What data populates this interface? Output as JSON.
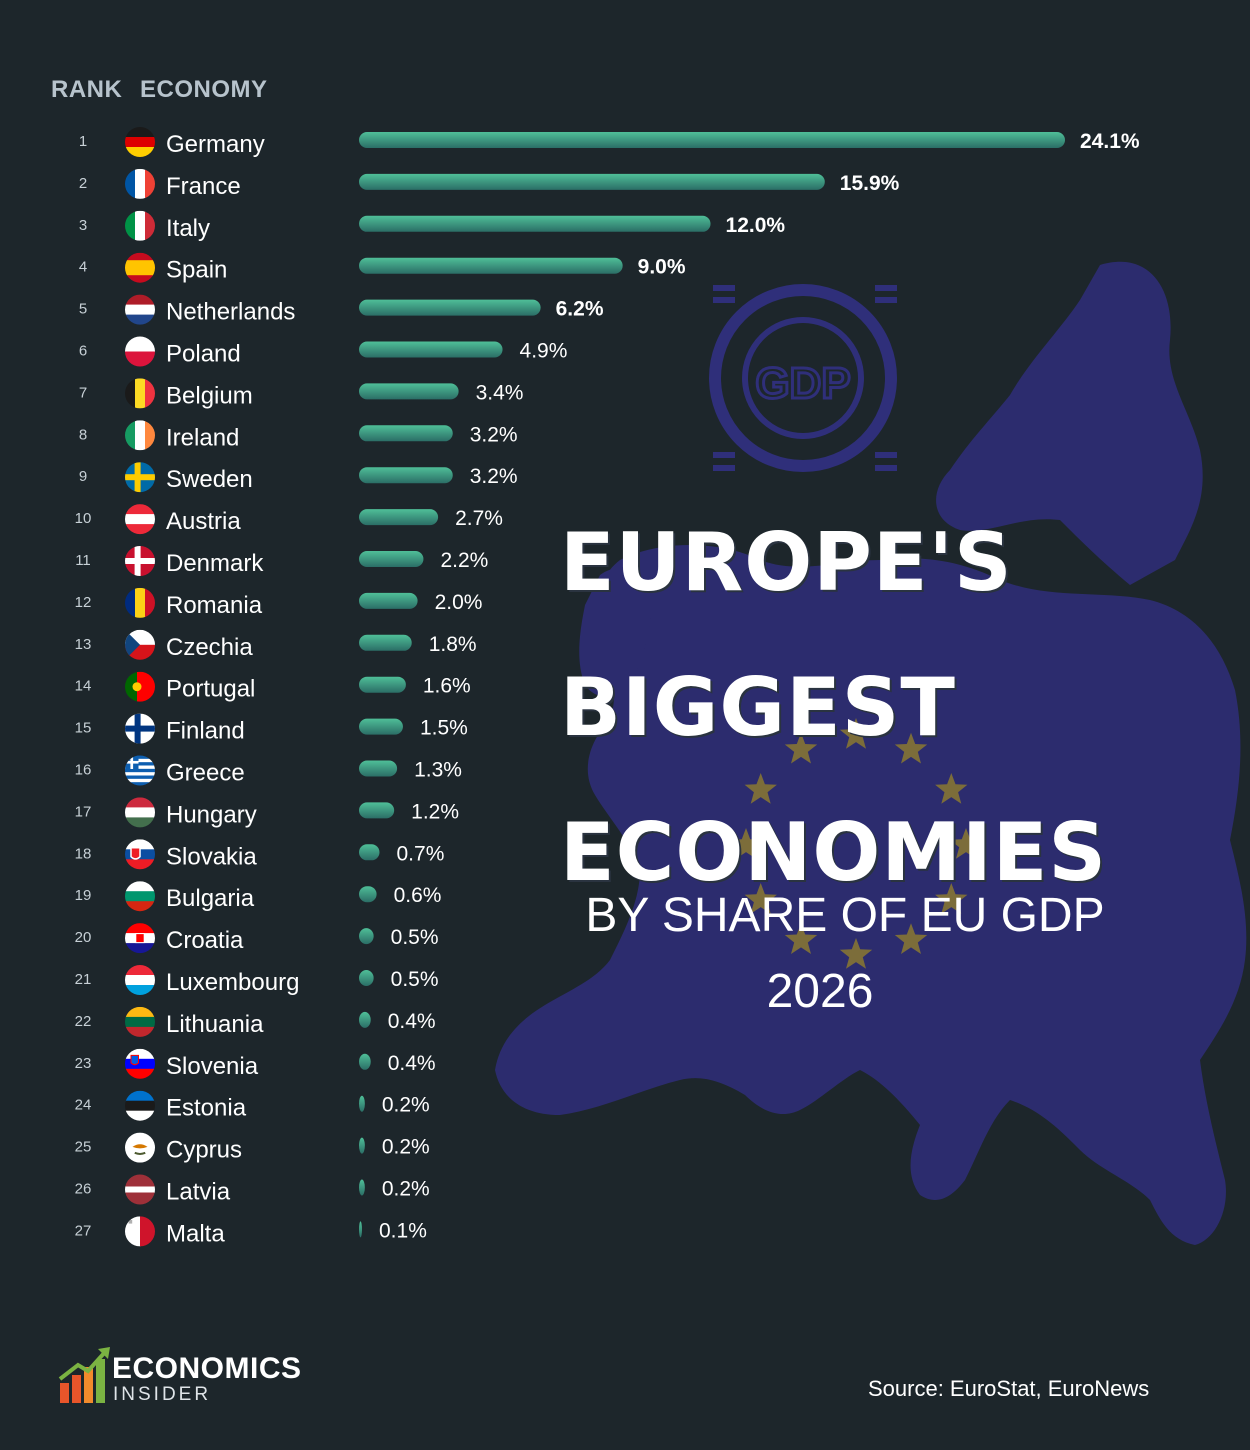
{
  "header": {
    "rank_label": "RANK",
    "economy_label": "ECONOMY"
  },
  "title": {
    "line1": "EUROPE'S",
    "line2": "BIGGEST",
    "line3": "ECONOMIES",
    "subtitle": "BY SHARE OF EU GDP",
    "year": "2026"
  },
  "source": "Source: EuroStat, EuroNews",
  "logo": {
    "line1": "ECONOMICS",
    "line2": "INSIDER"
  },
  "colors": {
    "background": "#1d262b",
    "bar_top": "#4fbf98",
    "bar_bottom": "#2b6e66",
    "map": "#2c2c6e",
    "stars": "#7c6d3a"
  },
  "chart_data": {
    "type": "bar",
    "orientation": "horizontal",
    "unit": "%",
    "rows": [
      {
        "rank": "1",
        "economy": "Germany",
        "value": 24.1,
        "label": "24.1%",
        "flag": "de"
      },
      {
        "rank": "2",
        "economy": "France",
        "value": 15.9,
        "label": "15.9%",
        "flag": "fr"
      },
      {
        "rank": "3",
        "economy": "Italy",
        "value": 12.0,
        "label": "12.0%",
        "flag": "it"
      },
      {
        "rank": "4",
        "economy": "Spain",
        "value": 9.0,
        "label": "9.0%",
        "flag": "es"
      },
      {
        "rank": "5",
        "economy": "Netherlands",
        "value": 6.2,
        "label": "6.2%",
        "flag": "nl"
      },
      {
        "rank": "6",
        "economy": "Poland",
        "value": 4.9,
        "label": "4.9%",
        "flag": "pl"
      },
      {
        "rank": "7",
        "economy": "Belgium",
        "value": 3.4,
        "label": "3.4%",
        "flag": "be"
      },
      {
        "rank": "8",
        "economy": "Ireland",
        "value": 3.2,
        "label": "3.2%",
        "flag": "ie"
      },
      {
        "rank": "9",
        "economy": "Sweden",
        "value": 3.2,
        "label": "3.2%",
        "flag": "se"
      },
      {
        "rank": "10",
        "economy": "Austria",
        "value": 2.7,
        "label": "2.7%",
        "flag": "at"
      },
      {
        "rank": "11",
        "economy": "Denmark",
        "value": 2.2,
        "label": "2.2%",
        "flag": "dk"
      },
      {
        "rank": "12",
        "economy": "Romania",
        "value": 2.0,
        "label": "2.0%",
        "flag": "ro"
      },
      {
        "rank": "13",
        "economy": "Czechia",
        "value": 1.8,
        "label": "1.8%",
        "flag": "cz"
      },
      {
        "rank": "14",
        "economy": "Portugal",
        "value": 1.6,
        "label": "1.6%",
        "flag": "pt"
      },
      {
        "rank": "15",
        "economy": "Finland",
        "value": 1.5,
        "label": "1.5%",
        "flag": "fi"
      },
      {
        "rank": "16",
        "economy": "Greece",
        "value": 1.3,
        "label": "1.3%",
        "flag": "gr"
      },
      {
        "rank": "17",
        "economy": "Hungary",
        "value": 1.2,
        "label": "1.2%",
        "flag": "hu"
      },
      {
        "rank": "18",
        "economy": "Slovakia",
        "value": 0.7,
        "label": "0.7%",
        "flag": "sk"
      },
      {
        "rank": "19",
        "economy": "Bulgaria",
        "value": 0.6,
        "label": "0.6%",
        "flag": "bg"
      },
      {
        "rank": "20",
        "economy": "Croatia",
        "value": 0.5,
        "label": "0.5%",
        "flag": "hr"
      },
      {
        "rank": "21",
        "economy": "Luxembourg",
        "value": 0.5,
        "label": "0.5%",
        "flag": "lu"
      },
      {
        "rank": "22",
        "economy": "Lithuania",
        "value": 0.4,
        "label": "0.4%",
        "flag": "lt"
      },
      {
        "rank": "23",
        "economy": "Slovenia",
        "value": 0.4,
        "label": "0.4%",
        "flag": "si"
      },
      {
        "rank": "24",
        "economy": "Estonia",
        "value": 0.2,
        "label": "0.2%",
        "flag": "ee"
      },
      {
        "rank": "25",
        "economy": "Cyprus",
        "value": 0.2,
        "label": "0.2%",
        "flag": "cy"
      },
      {
        "rank": "26",
        "economy": "Latvia",
        "value": 0.2,
        "label": "0.2%",
        "flag": "lv"
      },
      {
        "rank": "27",
        "economy": "Malta",
        "value": 0.1,
        "label": "0.1%",
        "flag": "mt"
      }
    ]
  }
}
